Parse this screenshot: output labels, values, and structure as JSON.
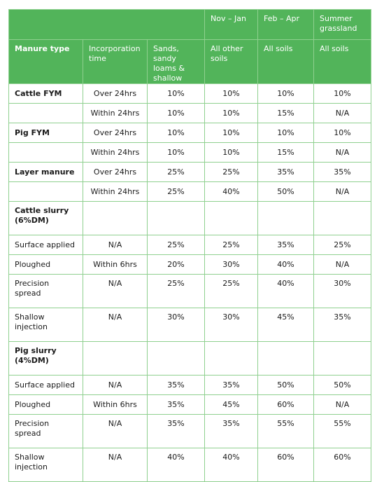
{
  "header": {
    "periods": [
      "Nov – Jan",
      "Feb – Apr",
      "Summer grassland"
    ],
    "columns": [
      "Manure type",
      "Incorporation time",
      "Sands, sandy loams & shallow",
      "All other soils",
      "All soils",
      "All soils"
    ]
  },
  "table": {
    "rows": [
      {
        "manure": "Cattle FYM",
        "incorporation": "Over 24hrs",
        "values": [
          "10%",
          "10%",
          "10%",
          "10%"
        ]
      },
      {
        "incorporation": "Within 24hrs",
        "values": [
          "10%",
          "10%",
          "15%",
          "N/A"
        ]
      },
      {
        "manure": "Pig FYM",
        "incorporation": "Over 24hrs",
        "values": [
          "10%",
          "10%",
          "10%",
          "10%"
        ]
      },
      {
        "incorporation": "Within 24hrs",
        "values": [
          "10%",
          "10%",
          "15%",
          "N/A"
        ]
      },
      {
        "manure": "Layer manure",
        "incorporation": "Over 24hrs",
        "values": [
          "25%",
          "25%",
          "35%",
          "35%"
        ]
      },
      {
        "incorporation": "Within 24hrs",
        "values": [
          "25%",
          "40%",
          "50%",
          "N/A"
        ]
      },
      {
        "manure": "Cattle slurry (6%DM)",
        "section": true
      },
      {
        "manure": "Surface applied",
        "incorporation": "N/A",
        "values": [
          "25%",
          "25%",
          "35%",
          "25%"
        ]
      },
      {
        "manure": "Ploughed",
        "incorporation": "Within 6hrs",
        "values": [
          "20%",
          "30%",
          "40%",
          "N/A"
        ]
      },
      {
        "manure": "Precision spread",
        "incorporation": "N/A",
        "values": [
          "25%",
          "25%",
          "40%",
          "30%"
        ]
      },
      {
        "manure": "Shallow injection",
        "incorporation": "N/A",
        "values": [
          "30%",
          "30%",
          "45%",
          "35%"
        ]
      },
      {
        "manure": "Pig slurry (4%DM)",
        "section": true
      },
      {
        "manure": "Surface applied",
        "incorporation": "N/A",
        "values": [
          "35%",
          "35%",
          "50%",
          "50%"
        ]
      },
      {
        "manure": "Ploughed",
        "incorporation": "Within 6hrs",
        "values": [
          "35%",
          "45%",
          "60%",
          "N/A"
        ]
      },
      {
        "manure": "Precision spread",
        "incorporation": "N/A",
        "values": [
          "35%",
          "35%",
          "55%",
          "55%"
        ]
      },
      {
        "manure": "Shallow injection",
        "incorporation": "N/A",
        "values": [
          "40%",
          "40%",
          "60%",
          "60%"
        ]
      }
    ]
  }
}
